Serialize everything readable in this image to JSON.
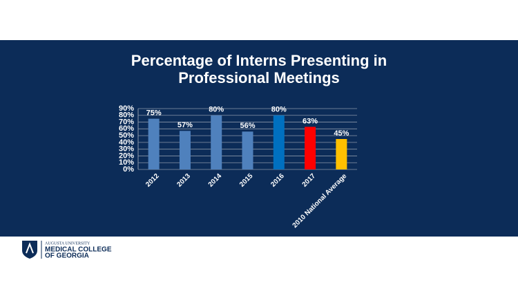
{
  "chart_data": {
    "type": "bar",
    "title": [
      "Percentage of Interns Presenting in",
      "Professional Meetings"
    ],
    "categories": [
      "2012",
      "2013",
      "2014",
      "2015",
      "2016",
      "2017",
      "2010 National Average"
    ],
    "values": [
      75,
      57,
      80,
      56,
      80,
      63,
      45
    ],
    "value_labels": [
      "75%",
      "57%",
      "80%",
      "56%",
      "80%",
      "63%",
      "45%"
    ],
    "colors": [
      "#4f81bd",
      "#4f81bd",
      "#4f81bd",
      "#4f81bd",
      "#0070c0",
      "#ff0000",
      "#ffc000"
    ],
    "ylim": [
      0,
      90
    ],
    "yticks": [
      {
        "value": 0,
        "label": "0%"
      },
      {
        "value": 10,
        "label": "10%"
      },
      {
        "value": 20,
        "label": "20%"
      },
      {
        "value": 30,
        "label": "30%"
      },
      {
        "value": 40,
        "label": "40%"
      },
      {
        "value": 50,
        "label": "50%"
      },
      {
        "value": 60,
        "label": "60%"
      },
      {
        "value": 70,
        "label": "70%"
      },
      {
        "value": 80,
        "label": "80%"
      },
      {
        "value": 90,
        "label": "90%"
      }
    ],
    "grid": true
  },
  "footer": {
    "university": "AUGUSTA UNIVERSITY",
    "college_line1": "MEDICAL COLLEGE",
    "college_line2": "OF GEORGIA"
  }
}
